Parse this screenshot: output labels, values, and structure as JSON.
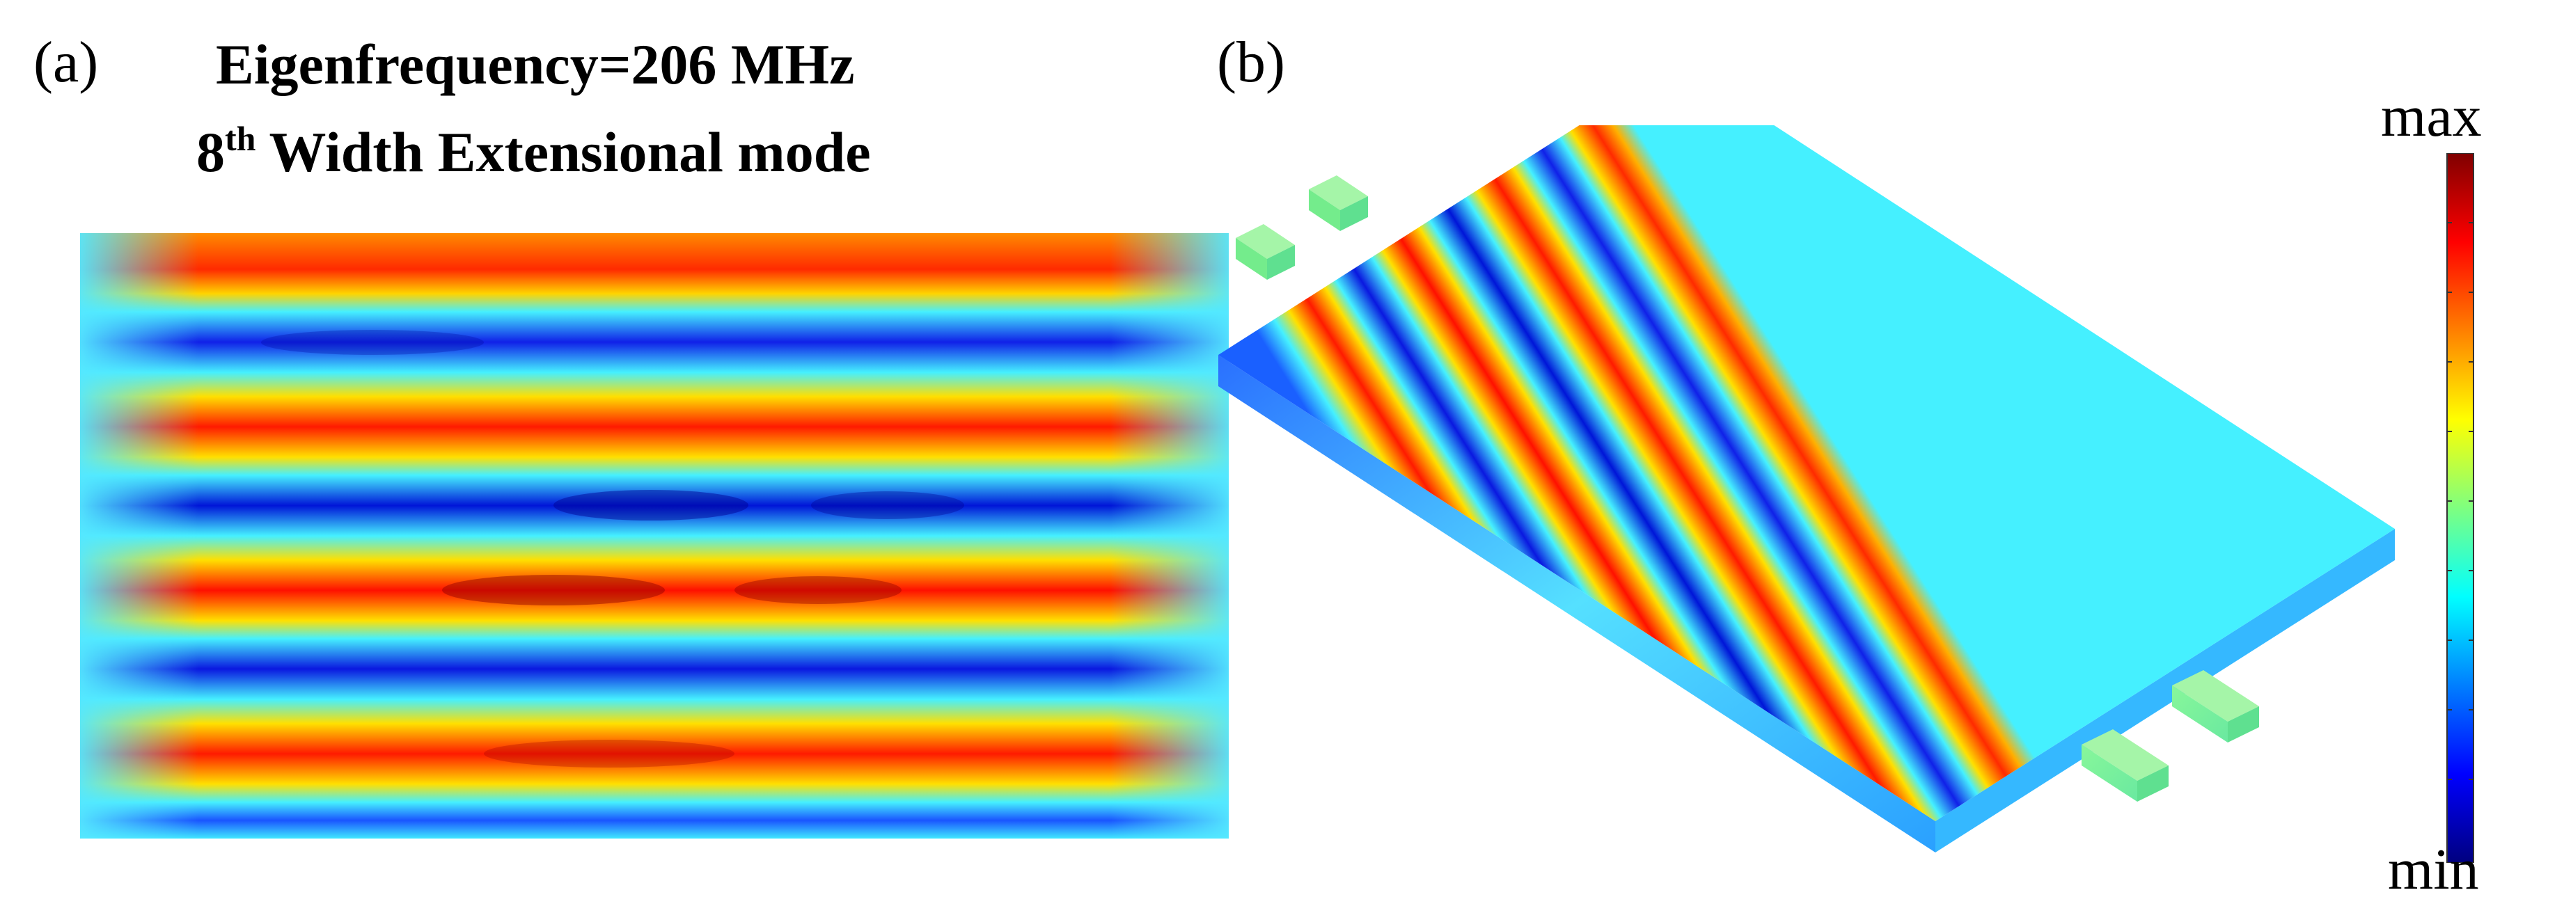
{
  "panels": {
    "a": {
      "label": "(a)",
      "title_line1": "Eigenfrequency=206 MHz",
      "title_line2_prefix": "8",
      "title_line2_sup": "th",
      "title_line2_rest": " Width Extensional mode"
    },
    "b": {
      "label": "(b)"
    }
  },
  "colorbar": {
    "max_label": "max",
    "min_label": "min",
    "colormap": "jet",
    "colors": [
      "#00007f",
      "#0000ff",
      "#007fff",
      "#00ffff",
      "#7fff7f",
      "#ffff00",
      "#ff7f00",
      "#ff0000",
      "#7f0000"
    ]
  },
  "mode_shape": {
    "red_bands": 4,
    "blue_bands": 4
  }
}
